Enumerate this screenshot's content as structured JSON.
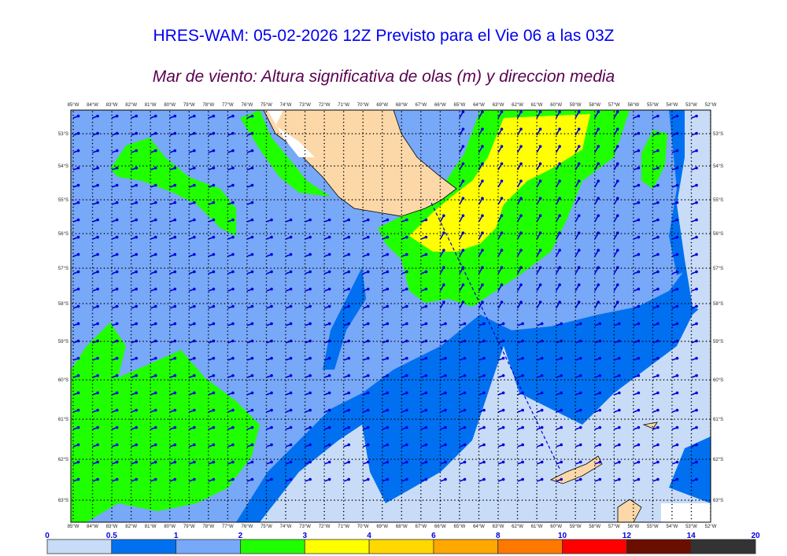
{
  "title": "HRES-WAM: 05-02-2026 12Z Previsto para el Vie 06 a las 03Z",
  "subtitle": "Mar de viento: Altura significativa de olas (m) y direccion media",
  "map": {
    "longitudes": [
      "85°W",
      "84°W",
      "83°W",
      "82°W",
      "81°W",
      "80°W",
      "79°W",
      "78°W",
      "77°W",
      "76°W",
      "75°W",
      "74°W",
      "73°W",
      "72°W",
      "71°W",
      "70°W",
      "69°W",
      "68°W",
      "67°W",
      "66°W",
      "65°W",
      "64°W",
      "63°W",
      "62°W",
      "61°W",
      "60°W",
      "59°W",
      "58°W",
      "57°W",
      "56°W",
      "55°W",
      "54°W",
      "53°W",
      "52°W"
    ],
    "latitudes": [
      "53°S",
      "54°S",
      "55°S",
      "56°S",
      "57°S",
      "58°S",
      "59°S",
      "60°S",
      "61°S",
      "62°S",
      "63°S"
    ],
    "land_color": "#fcd8a8",
    "arrow_color": "#0000e0",
    "route_line_color": "#0000e0"
  },
  "colorbar": {
    "labels": [
      "0",
      "0.5",
      "1",
      "2",
      "3",
      "4",
      "6",
      "8",
      "10",
      "12",
      "14",
      "20"
    ],
    "colors": [
      "#c8dcf8",
      "#0070f0",
      "#78a8f8",
      "#20ff00",
      "#ffff00",
      "#ffd800",
      "#ffa800",
      "#ff7800",
      "#ff0000",
      "#6a0e00",
      "#333333"
    ]
  }
}
